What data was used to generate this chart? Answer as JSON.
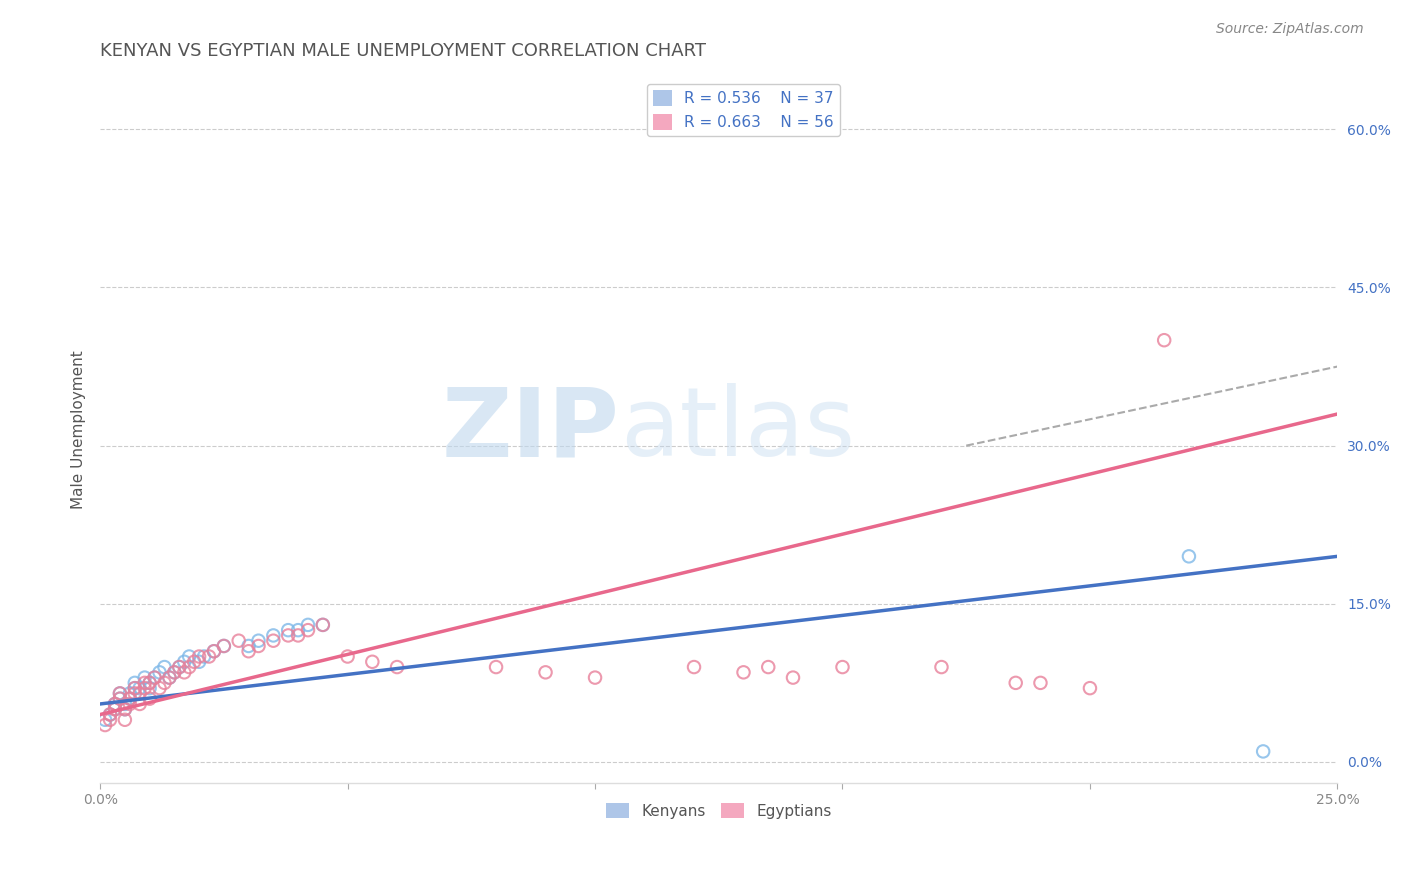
{
  "title": "KENYAN VS EGYPTIAN MALE UNEMPLOYMENT CORRELATION CHART",
  "source": "Source: ZipAtlas.com",
  "ylabel": "Male Unemployment",
  "xlim": [
    0.0,
    0.25
  ],
  "ylim": [
    -0.02,
    0.65
  ],
  "xticks": [
    0.0,
    0.05,
    0.1,
    0.15,
    0.2,
    0.25
  ],
  "xtick_labels": [
    "0.0%",
    "",
    "",
    "",
    "",
    "25.0%"
  ],
  "yticks_right": [
    0.0,
    0.15,
    0.3,
    0.45,
    0.6
  ],
  "ytick_labels_right": [
    "0.0%",
    "15.0%",
    "30.0%",
    "45.0%",
    "60.0%"
  ],
  "legend_entries": [
    {
      "label": "R = 0.536    N = 37",
      "color": "#aec6e8"
    },
    {
      "label": "R = 0.663    N = 56",
      "color": "#f4a8bf"
    }
  ],
  "legend_bottom_entries": [
    {
      "label": "Kenyans",
      "color": "#aec6e8"
    },
    {
      "label": "Egyptians",
      "color": "#f4a8bf"
    }
  ],
  "kenyan_scatter": {
    "x": [
      0.001,
      0.002,
      0.003,
      0.003,
      0.004,
      0.004,
      0.005,
      0.005,
      0.006,
      0.006,
      0.007,
      0.007,
      0.008,
      0.009,
      0.01,
      0.01,
      0.011,
      0.012,
      0.013,
      0.014,
      0.015,
      0.016,
      0.017,
      0.018,
      0.02,
      0.021,
      0.023,
      0.025,
      0.03,
      0.032,
      0.035,
      0.038,
      0.04,
      0.042,
      0.045,
      0.22,
      0.235
    ],
    "y": [
      0.04,
      0.045,
      0.05,
      0.055,
      0.06,
      0.065,
      0.05,
      0.055,
      0.06,
      0.065,
      0.07,
      0.075,
      0.07,
      0.08,
      0.07,
      0.075,
      0.08,
      0.085,
      0.09,
      0.08,
      0.085,
      0.09,
      0.095,
      0.1,
      0.095,
      0.1,
      0.105,
      0.11,
      0.11,
      0.115,
      0.12,
      0.125,
      0.125,
      0.13,
      0.13,
      0.195,
      0.01
    ],
    "edge_color": "#7eb8e8",
    "alpha": 0.8,
    "size": 80
  },
  "egyptian_scatter": {
    "x": [
      0.001,
      0.002,
      0.002,
      0.003,
      0.003,
      0.004,
      0.004,
      0.005,
      0.005,
      0.006,
      0.006,
      0.007,
      0.007,
      0.008,
      0.008,
      0.009,
      0.009,
      0.01,
      0.01,
      0.011,
      0.012,
      0.013,
      0.014,
      0.015,
      0.016,
      0.017,
      0.018,
      0.019,
      0.02,
      0.022,
      0.023,
      0.025,
      0.028,
      0.03,
      0.032,
      0.035,
      0.038,
      0.04,
      0.042,
      0.045,
      0.05,
      0.055,
      0.06,
      0.08,
      0.09,
      0.1,
      0.12,
      0.13,
      0.135,
      0.14,
      0.15,
      0.17,
      0.185,
      0.19,
      0.2,
      0.215
    ],
    "y": [
      0.035,
      0.04,
      0.045,
      0.05,
      0.055,
      0.06,
      0.065,
      0.04,
      0.05,
      0.055,
      0.06,
      0.065,
      0.07,
      0.055,
      0.065,
      0.07,
      0.075,
      0.06,
      0.075,
      0.08,
      0.07,
      0.075,
      0.08,
      0.085,
      0.09,
      0.085,
      0.09,
      0.095,
      0.1,
      0.1,
      0.105,
      0.11,
      0.115,
      0.105,
      0.11,
      0.115,
      0.12,
      0.12,
      0.125,
      0.13,
      0.1,
      0.095,
      0.09,
      0.09,
      0.085,
      0.08,
      0.09,
      0.085,
      0.09,
      0.08,
      0.09,
      0.09,
      0.075,
      0.075,
      0.07,
      0.4
    ],
    "edge_color": "#e8809a",
    "alpha": 0.8,
    "size": 80
  },
  "kenyan_line": {
    "x": [
      0.0,
      0.25
    ],
    "y": [
      0.055,
      0.195
    ],
    "color": "#4472c4",
    "linewidth": 2.5
  },
  "egyptian_line": {
    "x": [
      0.0,
      0.25
    ],
    "y": [
      0.045,
      0.33
    ],
    "color": "#e8688c",
    "linewidth": 2.5
  },
  "dashed_line": {
    "x": [
      0.175,
      0.25
    ],
    "y": [
      0.3,
      0.375
    ],
    "color": "#aaaaaa",
    "linewidth": 1.5,
    "linestyle": "--"
  },
  "watermark_zip": "ZIP",
  "watermark_atlas": "atlas",
  "watermark_color_zip": "#c0d8ee",
  "watermark_color_atlas": "#c0d8ee",
  "background_color": "#ffffff",
  "grid_color": "#cccccc",
  "title_color": "#555555",
  "title_fontsize": 13,
  "axis_label_color": "#555555",
  "tick_label_color": "#888888",
  "right_tick_color": "#4472c4"
}
